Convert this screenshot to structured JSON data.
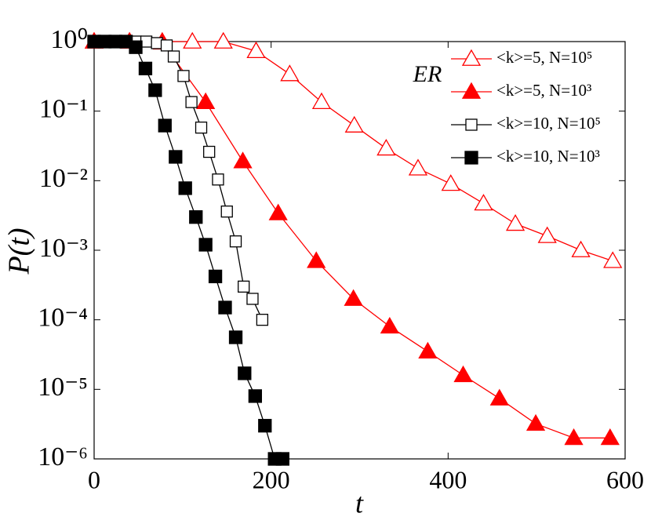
{
  "chart_data": {
    "type": "line",
    "xlabel": "t",
    "ylabel": "P(t)",
    "annotation": "ER",
    "log_y": true,
    "legend": "upper right",
    "xlim": [
      0,
      600
    ],
    "xticks": [
      0,
      200,
      400,
      600
    ],
    "ylim": [
      1e-06,
      1
    ],
    "yticks": [
      {
        "value": 1,
        "label": "10⁰"
      },
      {
        "value": 0.1,
        "label": "10⁻¹"
      },
      {
        "value": 0.01,
        "label": "10⁻²"
      },
      {
        "value": 0.001,
        "label": "10⁻³"
      },
      {
        "value": 0.0001,
        "label": "10⁻⁴"
      },
      {
        "value": 1e-05,
        "label": "10⁻⁵"
      },
      {
        "value": 1e-06,
        "label": "10⁻⁶"
      }
    ],
    "series": [
      {
        "name": "<k>=5, N=10⁵",
        "color": "#ff0000",
        "marker": "triangle-open",
        "x": [
          0,
          40,
          77,
          111,
          146,
          183,
          221,
          257,
          294,
          330,
          366,
          403,
          440,
          476,
          512,
          550,
          586
        ],
        "values": [
          1,
          1,
          1,
          1,
          1,
          0.73,
          0.34,
          0.135,
          0.062,
          0.029,
          0.015,
          0.009,
          0.0047,
          0.0024,
          0.0016,
          0.001,
          0.0007
        ]
      },
      {
        "name": "<k>=5, N=10³",
        "color": "#ff0000",
        "marker": "triangle-filled",
        "x": [
          0,
          40,
          77,
          126,
          168,
          208,
          251,
          293,
          334,
          377,
          417,
          458,
          499,
          542,
          583
        ],
        "values": [
          1,
          1,
          0.97,
          0.135,
          0.019,
          0.0034,
          0.0007,
          0.0002,
          8e-05,
          3.5e-05,
          1.6e-05,
          7.4e-06,
          3.2e-06,
          2e-06,
          2e-06
        ]
      },
      {
        "name": "<k>=10, N=10⁵",
        "color": "#000000",
        "marker": "square-open",
        "x": [
          0,
          12,
          24,
          36,
          47,
          59,
          71,
          82,
          90,
          101,
          110,
          121,
          130,
          140,
          150,
          160,
          169,
          179,
          190
        ],
        "values": [
          1,
          1,
          1,
          1,
          1,
          1,
          0.95,
          0.88,
          0.61,
          0.32,
          0.135,
          0.058,
          0.026,
          0.0104,
          0.0036,
          0.00134,
          0.0003,
          0.0002,
          0.0001
        ]
      },
      {
        "name": "<k>=10, N=10³",
        "color": "#000000",
        "marker": "square-filled",
        "x": [
          0,
          12,
          24,
          36,
          47,
          58,
          69,
          80,
          92,
          103,
          115,
          126,
          137,
          148,
          160,
          170,
          182,
          193,
          204,
          213
        ],
        "values": [
          1,
          1,
          1,
          1,
          0.83,
          0.41,
          0.2,
          0.062,
          0.022,
          0.0078,
          0.003,
          0.0012,
          0.00042,
          0.00015,
          5.6e-05,
          1.7e-05,
          8e-06,
          3e-06,
          1e-06,
          1e-06
        ]
      }
    ]
  }
}
